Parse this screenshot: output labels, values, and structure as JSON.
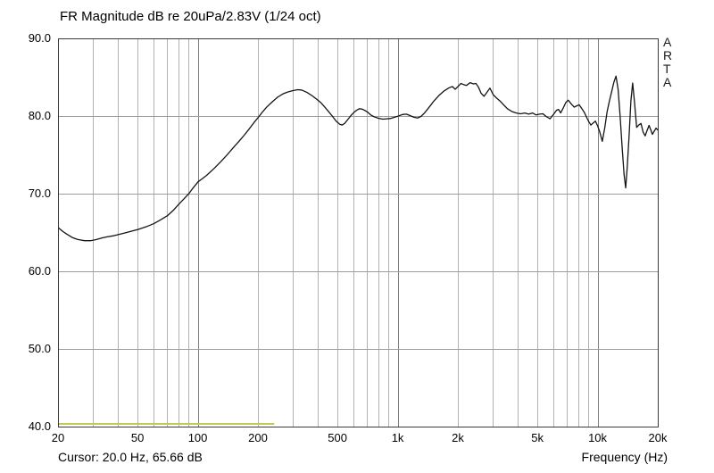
{
  "title": "FR Magnitude dB re 20uPa/2.83V (1/24 oct)",
  "watermark": {
    "letters": [
      "A",
      "R",
      "T",
      "A"
    ]
  },
  "status": {
    "cursor_text": "Cursor: 20.0 Hz, 65.66 dB",
    "x_axis_label": "Frequency (Hz)"
  },
  "colors": {
    "curve": "#141414",
    "overlay": "#c5ca55",
    "grid_minor": "#b3b3b3",
    "grid_major": "#7d7d7d",
    "grid_horizontal": "#9c9c9c",
    "border": "#3a3a3a",
    "background": "#ffffff"
  },
  "chart_data": {
    "type": "line",
    "title": "FR Magnitude dB re 20uPa/2.83V (1/24 oct)",
    "xlabel": "Frequency (Hz)",
    "ylabel": "dB re 20uPa/2.83V",
    "x_scale": "log",
    "xlim": [
      20,
      20000
    ],
    "ylim": [
      40,
      90
    ],
    "grid": true,
    "y_ticks": [
      {
        "value": 90,
        "label": "90.0"
      },
      {
        "value": 80,
        "label": "80.0"
      },
      {
        "value": 70,
        "label": "70.0"
      },
      {
        "value": 60,
        "label": "60.0"
      },
      {
        "value": 50,
        "label": "50.0"
      },
      {
        "value": 40,
        "label": "40.0"
      }
    ],
    "x_ticks": [
      {
        "value": 20,
        "label": "20"
      },
      {
        "value": 50,
        "label": "50"
      },
      {
        "value": 100,
        "label": "100"
      },
      {
        "value": 200,
        "label": "200"
      },
      {
        "value": 500,
        "label": "500"
      },
      {
        "value": 1000,
        "label": "1k"
      },
      {
        "value": 2000,
        "label": "2k"
      },
      {
        "value": 5000,
        "label": "5k"
      },
      {
        "value": 10000,
        "label": "10k"
      },
      {
        "value": 20000,
        "label": "20k"
      }
    ],
    "x_gridlines_minor": [
      30,
      40,
      50,
      60,
      70,
      80,
      90,
      200,
      300,
      400,
      500,
      600,
      700,
      800,
      900,
      2000,
      3000,
      4000,
      5000,
      6000,
      7000,
      8000,
      9000
    ],
    "x_gridlines_major": [
      100,
      1000,
      10000
    ],
    "y_gridlines": [
      50,
      60,
      70,
      80
    ],
    "series": [
      {
        "name": "fr-magnitude",
        "color": "#141414",
        "width": 1.3,
        "points": [
          [
            20,
            65.66
          ],
          [
            21,
            65.2
          ],
          [
            22,
            64.85
          ],
          [
            23.5,
            64.4
          ],
          [
            25,
            64.15
          ],
          [
            27,
            64.0
          ],
          [
            29,
            64.0
          ],
          [
            31,
            64.15
          ],
          [
            33,
            64.35
          ],
          [
            35,
            64.5
          ],
          [
            38,
            64.65
          ],
          [
            40,
            64.8
          ],
          [
            43,
            65.0
          ],
          [
            46,
            65.2
          ],
          [
            50,
            65.45
          ],
          [
            55,
            65.8
          ],
          [
            60,
            66.2
          ],
          [
            65,
            66.7
          ],
          [
            70,
            67.2
          ],
          [
            75,
            67.9
          ],
          [
            80,
            68.7
          ],
          [
            85,
            69.4
          ],
          [
            90,
            70.1
          ],
          [
            95,
            70.9
          ],
          [
            100,
            71.6
          ],
          [
            105,
            72.0
          ],
          [
            110,
            72.4
          ],
          [
            120,
            73.3
          ],
          [
            130,
            74.2
          ],
          [
            140,
            75.1
          ],
          [
            150,
            76.0
          ],
          [
            160,
            76.8
          ],
          [
            170,
            77.6
          ],
          [
            180,
            78.4
          ],
          [
            190,
            79.2
          ],
          [
            200,
            79.9
          ],
          [
            210,
            80.6
          ],
          [
            220,
            81.2
          ],
          [
            235,
            81.9
          ],
          [
            250,
            82.5
          ],
          [
            265,
            82.9
          ],
          [
            280,
            83.15
          ],
          [
            300,
            83.35
          ],
          [
            315,
            83.45
          ],
          [
            330,
            83.4
          ],
          [
            350,
            83.1
          ],
          [
            370,
            82.7
          ],
          [
            390,
            82.25
          ],
          [
            410,
            81.8
          ],
          [
            430,
            81.2
          ],
          [
            450,
            80.6
          ],
          [
            470,
            80.0
          ],
          [
            490,
            79.4
          ],
          [
            510,
            79.0
          ],
          [
            525,
            78.9
          ],
          [
            540,
            79.1
          ],
          [
            560,
            79.6
          ],
          [
            580,
            80.1
          ],
          [
            600,
            80.5
          ],
          [
            620,
            80.8
          ],
          [
            640,
            81.0
          ],
          [
            660,
            80.95
          ],
          [
            680,
            80.8
          ],
          [
            700,
            80.6
          ],
          [
            730,
            80.2
          ],
          [
            760,
            79.95
          ],
          [
            800,
            79.75
          ],
          [
            840,
            79.65
          ],
          [
            880,
            79.7
          ],
          [
            920,
            79.75
          ],
          [
            960,
            79.9
          ],
          [
            1000,
            80.05
          ],
          [
            1050,
            80.25
          ],
          [
            1100,
            80.3
          ],
          [
            1150,
            80.1
          ],
          [
            1200,
            79.9
          ],
          [
            1250,
            79.8
          ],
          [
            1300,
            80.0
          ],
          [
            1350,
            80.4
          ],
          [
            1400,
            80.9
          ],
          [
            1450,
            81.4
          ],
          [
            1500,
            81.9
          ],
          [
            1600,
            82.7
          ],
          [
            1700,
            83.3
          ],
          [
            1800,
            83.7
          ],
          [
            1870,
            83.85
          ],
          [
            1930,
            83.5
          ],
          [
            2000,
            83.9
          ],
          [
            2060,
            84.25
          ],
          [
            2130,
            84.1
          ],
          [
            2200,
            84.0
          ],
          [
            2290,
            84.35
          ],
          [
            2380,
            84.2
          ],
          [
            2450,
            84.25
          ],
          [
            2520,
            83.8
          ],
          [
            2600,
            83.0
          ],
          [
            2690,
            82.6
          ],
          [
            2780,
            83.1
          ],
          [
            2880,
            83.65
          ],
          [
            2990,
            82.8
          ],
          [
            3100,
            82.4
          ],
          [
            3230,
            82.0
          ],
          [
            3370,
            81.5
          ],
          [
            3520,
            81.0
          ],
          [
            3700,
            80.65
          ],
          [
            3900,
            80.45
          ],
          [
            4100,
            80.35
          ],
          [
            4300,
            80.45
          ],
          [
            4500,
            80.3
          ],
          [
            4700,
            80.45
          ],
          [
            4900,
            80.2
          ],
          [
            5100,
            80.3
          ],
          [
            5300,
            80.35
          ],
          [
            5500,
            80.0
          ],
          [
            5750,
            79.7
          ],
          [
            6000,
            80.3
          ],
          [
            6200,
            80.8
          ],
          [
            6350,
            80.9
          ],
          [
            6500,
            80.45
          ],
          [
            6700,
            81.1
          ],
          [
            6900,
            81.8
          ],
          [
            7100,
            82.1
          ],
          [
            7350,
            81.6
          ],
          [
            7600,
            81.2
          ],
          [
            7800,
            81.35
          ],
          [
            8050,
            81.5
          ],
          [
            8300,
            81.0
          ],
          [
            8550,
            80.5
          ],
          [
            8800,
            79.8
          ],
          [
            9000,
            79.3
          ],
          [
            9200,
            78.9
          ],
          [
            9450,
            79.15
          ],
          [
            9700,
            79.4
          ],
          [
            9950,
            78.8
          ],
          [
            10200,
            78.0
          ],
          [
            10500,
            76.8
          ],
          [
            10800,
            78.5
          ],
          [
            11100,
            80.6
          ],
          [
            11400,
            82.0
          ],
          [
            11700,
            83.2
          ],
          [
            12000,
            84.4
          ],
          [
            12300,
            85.2
          ],
          [
            12600,
            83.5
          ],
          [
            12900,
            80.0
          ],
          [
            13200,
            76.0
          ],
          [
            13500,
            72.5
          ],
          [
            13750,
            70.8
          ],
          [
            14000,
            73.5
          ],
          [
            14300,
            77.5
          ],
          [
            14600,
            82.0
          ],
          [
            14900,
            84.3
          ],
          [
            15200,
            82.0
          ],
          [
            15600,
            78.6
          ],
          [
            16000,
            78.9
          ],
          [
            16400,
            79.1
          ],
          [
            16800,
            78.0
          ],
          [
            17200,
            77.5
          ],
          [
            17600,
            78.2
          ],
          [
            18000,
            78.85
          ],
          [
            18400,
            78.2
          ],
          [
            18700,
            77.7
          ],
          [
            19100,
            78.1
          ],
          [
            19500,
            78.5
          ],
          [
            20000,
            78.2
          ]
        ]
      },
      {
        "name": "overlay-floor-trace",
        "color": "#c5ca55",
        "width": 2,
        "points": [
          [
            20,
            40.4
          ],
          [
            240,
            40.4
          ]
        ]
      }
    ]
  }
}
